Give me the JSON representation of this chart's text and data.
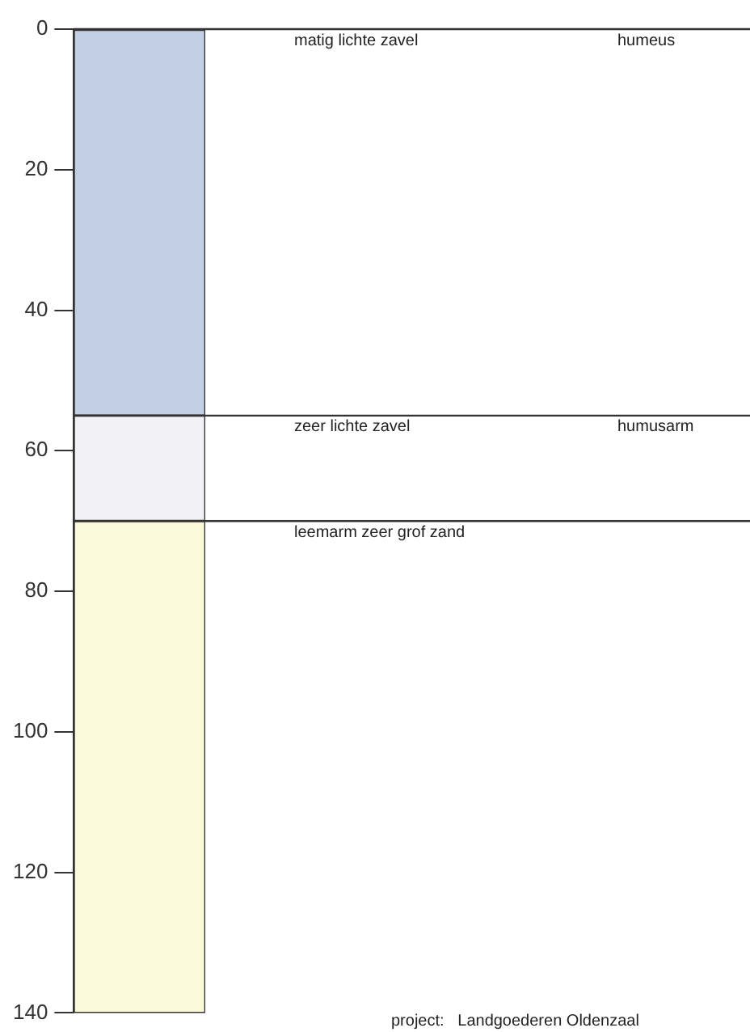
{
  "chart_data": {
    "type": "bar",
    "stacked": true,
    "categories": [
      null
    ],
    "series": [
      {
        "name": "matig lichte zavel",
        "color": "#c3cfe4",
        "values": [
          55
        ]
      },
      {
        "name": "zeer lichte zavel",
        "color": "#f2f1f5",
        "values": [
          15
        ]
      },
      {
        "name": "leemarm zeer grof zand",
        "color": "#fbf9d8",
        "values": [
          70
        ]
      }
    ],
    "ylim": [
      140,
      0
    ],
    "yticks": [
      0,
      20,
      40,
      60,
      80,
      100,
      120,
      140
    ],
    "grid": false,
    "legend": false,
    "ref_lines": [
      {
        "axis": "y",
        "value": 0,
        "color": "#333333"
      },
      {
        "axis": "y",
        "value": 55,
        "color": "#333333"
      },
      {
        "axis": "y",
        "value": 70,
        "color": "#333333"
      }
    ],
    "annotations": [
      "humeus",
      "humusarm",
      "project:   Landgoederen Oldenzaal"
    ]
  }
}
